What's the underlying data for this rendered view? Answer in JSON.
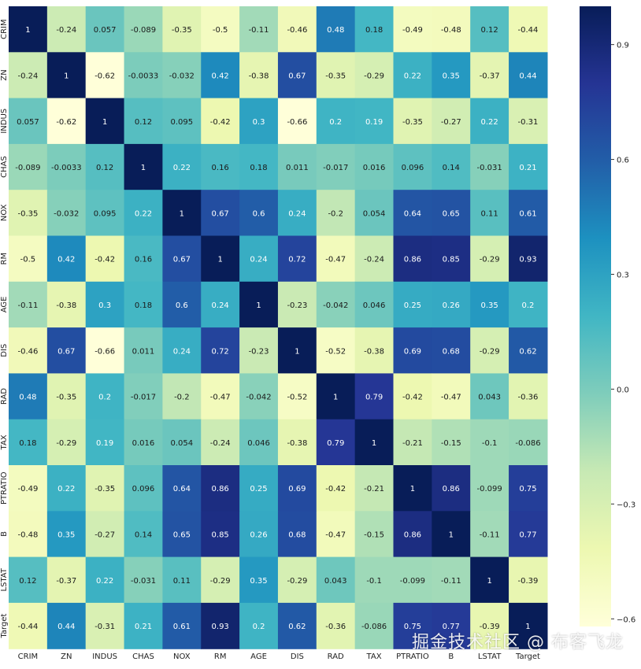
{
  "chart_data": {
    "type": "heatmap",
    "title": "",
    "labels": [
      "CRIM",
      "ZN",
      "INDUS",
      "CHAS",
      "NOX",
      "RM",
      "AGE",
      "DIS",
      "RAD",
      "TAX",
      "PTRATIO",
      "B",
      "LSTAT",
      "Target"
    ],
    "values": [
      [
        "1",
        "-0.24",
        "0.057",
        "-0.089",
        "-0.35",
        "-0.5",
        "-0.11",
        "-0.46",
        "0.48",
        "0.18",
        "-0.49",
        "-0.48",
        "0.12",
        "-0.44"
      ],
      [
        "-0.24",
        "1",
        "-0.62",
        "-0.0033",
        "-0.032",
        "0.42",
        "-0.38",
        "0.67",
        "-0.35",
        "-0.29",
        "0.22",
        "0.35",
        "-0.37",
        "0.44"
      ],
      [
        "0.057",
        "-0.62",
        "1",
        "0.12",
        "0.095",
        "-0.42",
        "0.3",
        "-0.66",
        "0.2",
        "0.19",
        "-0.35",
        "-0.27",
        "0.22",
        "-0.31"
      ],
      [
        "-0.089",
        "-0.0033",
        "0.12",
        "1",
        "0.22",
        "0.16",
        "0.18",
        "0.011",
        "-0.017",
        "0.016",
        "0.096",
        "0.14",
        "-0.031",
        "0.21"
      ],
      [
        "-0.35",
        "-0.032",
        "0.095",
        "0.22",
        "1",
        "0.67",
        "0.6",
        "0.24",
        "-0.2",
        "0.054",
        "0.64",
        "0.65",
        "0.11",
        "0.61"
      ],
      [
        "-0.5",
        "0.42",
        "-0.42",
        "0.16",
        "0.67",
        "1",
        "0.24",
        "0.72",
        "-0.47",
        "-0.24",
        "0.86",
        "0.85",
        "-0.29",
        "0.93"
      ],
      [
        "-0.11",
        "-0.38",
        "0.3",
        "0.18",
        "0.6",
        "0.24",
        "1",
        "-0.23",
        "-0.042",
        "0.046",
        "0.25",
        "0.26",
        "0.35",
        "0.2"
      ],
      [
        "-0.46",
        "0.67",
        "-0.66",
        "0.011",
        "0.24",
        "0.72",
        "-0.23",
        "1",
        "-0.52",
        "-0.38",
        "0.69",
        "0.68",
        "-0.29",
        "0.62"
      ],
      [
        "0.48",
        "-0.35",
        "0.2",
        "-0.017",
        "-0.2",
        "-0.47",
        "-0.042",
        "-0.52",
        "1",
        "0.79",
        "-0.42",
        "-0.47",
        "0.043",
        "-0.36"
      ],
      [
        "0.18",
        "-0.29",
        "0.19",
        "0.016",
        "0.054",
        "-0.24",
        "0.046",
        "-0.38",
        "0.79",
        "1",
        "-0.21",
        "-0.15",
        "-0.1",
        "-0.086"
      ],
      [
        "-0.49",
        "0.22",
        "-0.35",
        "0.096",
        "0.64",
        "0.86",
        "0.25",
        "0.69",
        "-0.42",
        "-0.21",
        "1",
        "0.86",
        "-0.099",
        "0.75"
      ],
      [
        "-0.48",
        "0.35",
        "-0.27",
        "0.14",
        "0.65",
        "0.85",
        "0.26",
        "0.68",
        "-0.47",
        "-0.15",
        "0.86",
        "1",
        "-0.11",
        "0.77"
      ],
      [
        "0.12",
        "-0.37",
        "0.22",
        "-0.031",
        "0.11",
        "-0.29",
        "0.35",
        "-0.29",
        "0.043",
        "-0.1",
        "-0.099",
        "-0.11",
        "1",
        "-0.39"
      ],
      [
        "-0.44",
        "0.44",
        "-0.31",
        "0.21",
        "0.61",
        "0.93",
        "0.2",
        "0.62",
        "-0.36",
        "-0.086",
        "0.75",
        "0.77",
        "-0.39",
        "1"
      ]
    ],
    "colorbar": {
      "range": [
        -0.62,
        1
      ],
      "ticks": [
        "0.9",
        "0.6",
        "0.3",
        "0.0",
        "−0.3",
        "−0.6"
      ],
      "tick_values": [
        0.9,
        0.6,
        0.3,
        0.0,
        -0.3,
        -0.6
      ]
    },
    "colormap": "YlGnBu",
    "colormap_stops": [
      "#ffffd9",
      "#edf8b1",
      "#c7e9b4",
      "#7fcdbb",
      "#41b6c4",
      "#1d91c0",
      "#225ea8",
      "#253494",
      "#081d58"
    ],
    "grid": false,
    "annotations": true
  },
  "watermark": "掘金技术社区 @ 布客飞龙"
}
